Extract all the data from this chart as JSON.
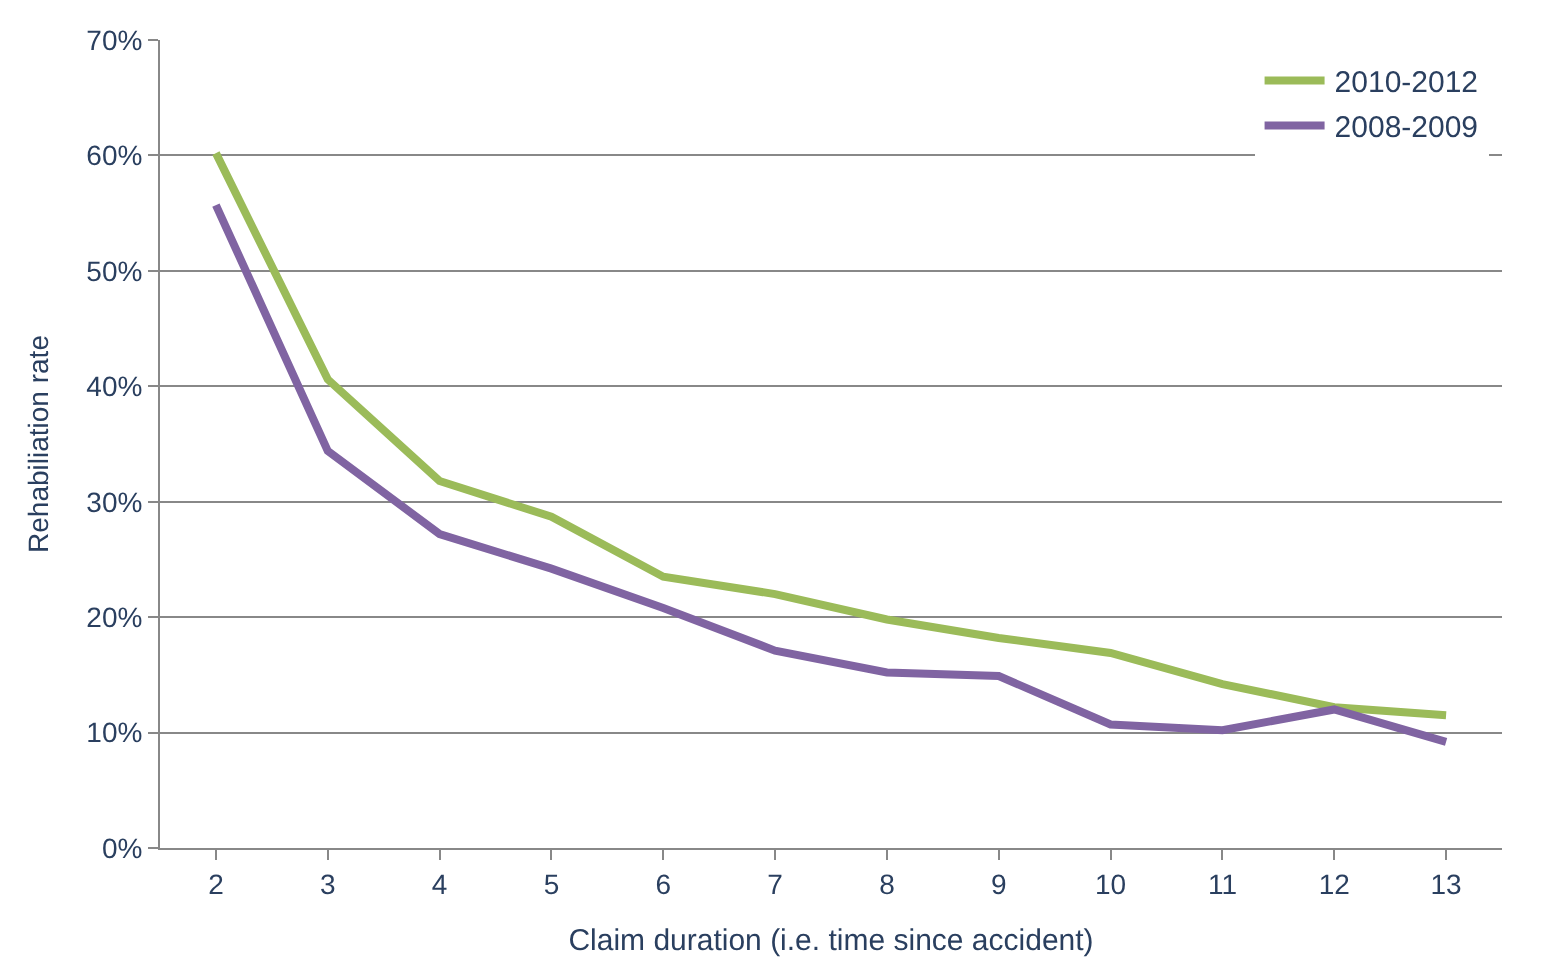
{
  "chart_data": {
    "type": "line",
    "xlabel": "Claim duration (i.e. time since accident)",
    "ylabel": "Rehabiliation rate",
    "categories": [
      "2",
      "3",
      "4",
      "5",
      "6",
      "7",
      "8",
      "9",
      "10",
      "11",
      "12",
      "13"
    ],
    "series": [
      {
        "name": "2010-2012",
        "color": "#9bbb59",
        "values": [
          60.2,
          40.6,
          31.8,
          28.7,
          23.5,
          22.0,
          19.8,
          18.2,
          16.9,
          14.2,
          12.2,
          11.5
        ]
      },
      {
        "name": "2008-2009",
        "color": "#8064a2",
        "values": [
          55.7,
          34.4,
          27.2,
          24.2,
          20.8,
          17.1,
          15.2,
          14.9,
          10.7,
          10.2,
          12.0,
          9.2
        ]
      }
    ],
    "ylim": [
      0,
      70
    ],
    "yticks": [
      {
        "value": 0,
        "label": "0%"
      },
      {
        "value": 10,
        "label": "10%"
      },
      {
        "value": 20,
        "label": "20%"
      },
      {
        "value": 30,
        "label": "30%"
      },
      {
        "value": 40,
        "label": "40%"
      },
      {
        "value": 50,
        "label": "50%"
      },
      {
        "value": 60,
        "label": "60%"
      },
      {
        "value": 70,
        "label": "70%"
      }
    ],
    "grid": "y",
    "legend": "top right",
    "marker": "none",
    "line_style": "solid"
  }
}
